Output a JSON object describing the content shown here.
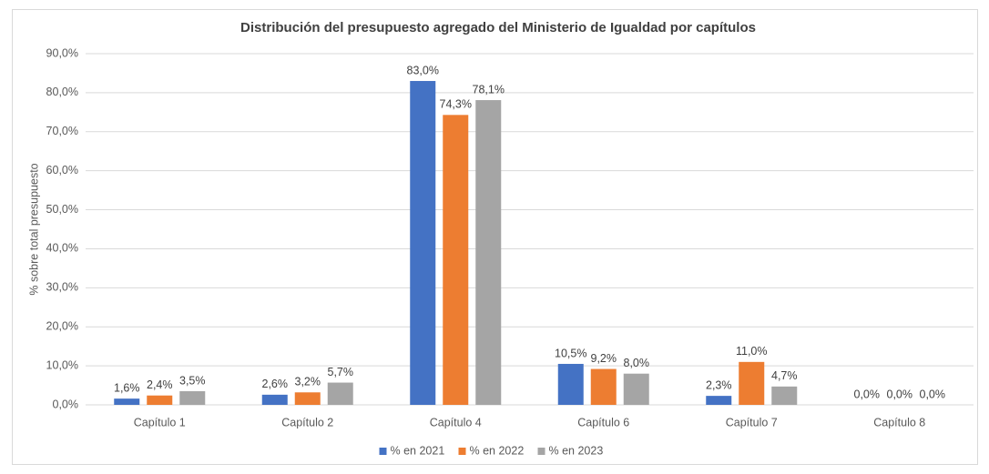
{
  "chart_data": {
    "type": "bar",
    "title": "Distribución del presupuesto agregado del Ministerio de Igualdad por capítulos",
    "y_label": "% sobre total presupuesto",
    "categories": [
      "Capítulo 1",
      "Capítulo 2",
      "Capítulo 4",
      "Capítulo 6",
      "Capítulo 7",
      "Capítulo 8"
    ],
    "series": [
      {
        "name": "% en 2021",
        "color": "#4472c4",
        "values": [
          1.6,
          2.6,
          83.0,
          10.5,
          2.3,
          0.0
        ],
        "value_labels": [
          "1,6%",
          "2,6%",
          "83,0%",
          "10,5%",
          "2,3%",
          "0,0%"
        ]
      },
      {
        "name": "% en 2022",
        "color": "#ed7d31",
        "values": [
          2.4,
          3.2,
          74.3,
          9.2,
          11.0,
          0.0
        ],
        "value_labels": [
          "2,4%",
          "3,2%",
          "74,3%",
          "9,2%",
          "11,0%",
          "0,0%"
        ]
      },
      {
        "name": "% en 2023",
        "color": "#a5a5a5",
        "values": [
          3.5,
          5.7,
          78.1,
          8.0,
          4.7,
          0.0
        ],
        "value_labels": [
          "3,5%",
          "5,7%",
          "78,1%",
          "8,0%",
          "4,7%",
          "0,0%"
        ]
      }
    ],
    "ylim": [
      0,
      90
    ],
    "yticks": [
      {
        "value": 0,
        "label": "0,0%"
      },
      {
        "value": 10,
        "label": "10,0%"
      },
      {
        "value": 20,
        "label": "20,0%"
      },
      {
        "value": 30,
        "label": "30,0%"
      },
      {
        "value": 40,
        "label": "40,0%"
      },
      {
        "value": 50,
        "label": "50,0%"
      },
      {
        "value": 60,
        "label": "60,0%"
      },
      {
        "value": 70,
        "label": "70,0%"
      },
      {
        "value": 80,
        "label": "80,0%"
      },
      {
        "value": 90,
        "label": "90,0%"
      }
    ],
    "grid": true,
    "legend": "bottom"
  }
}
